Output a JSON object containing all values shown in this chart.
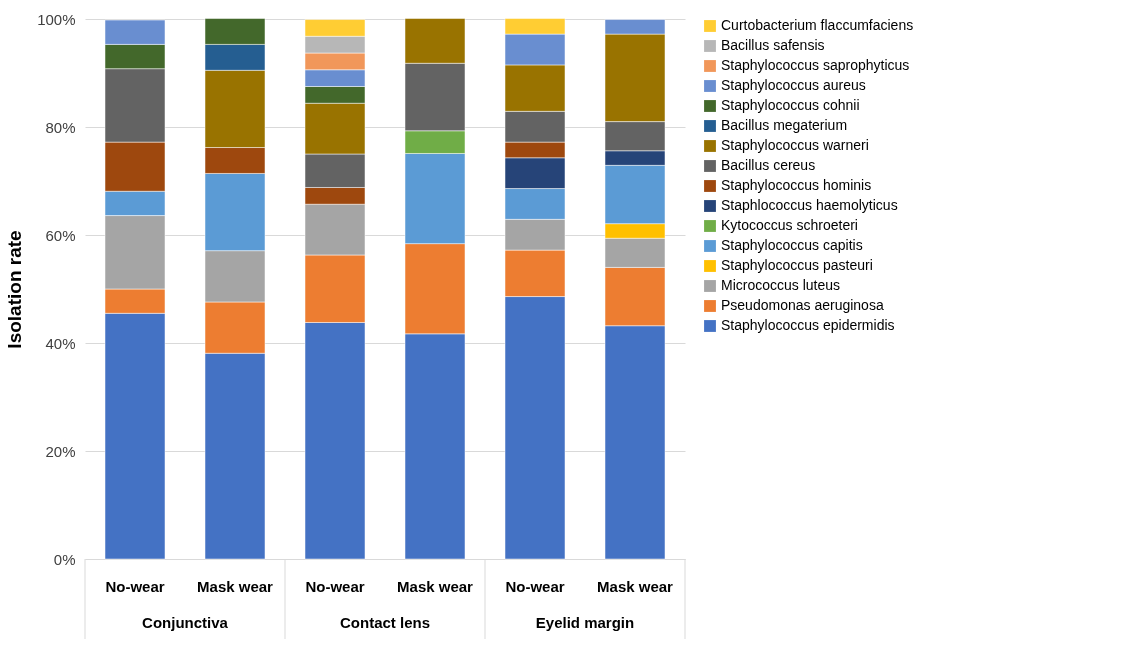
{
  "chart_data": {
    "type": "bar",
    "stacked": true,
    "ylabel": "Isolation rate",
    "categories": [
      "No-wear",
      "Mask wear",
      "No-wear",
      "Mask wear",
      "No-wear",
      "Mask wear"
    ],
    "annotations": [
      "Conjunctiva",
      "Contact lens",
      "Eyelid margin"
    ],
    "ylim": [
      0,
      100
    ],
    "yticks": [
      {
        "value": 0,
        "label": "0%"
      },
      {
        "value": 20,
        "label": "20%"
      },
      {
        "value": 40,
        "label": "40%"
      },
      {
        "value": 60,
        "label": "60%"
      },
      {
        "value": 80,
        "label": "80%"
      },
      {
        "value": 100,
        "label": "100%"
      }
    ],
    "grid": "y",
    "legend": "right",
    "series": [
      {
        "name": "Staphylococcus epidermidis",
        "color": "#4472c4",
        "values": [
          45.5,
          38.1,
          43.8,
          41.7,
          48.6,
          43.2
        ]
      },
      {
        "name": "Pseudomonas aeruginosa",
        "color": "#ed7d31",
        "values": [
          4.5,
          9.5,
          12.5,
          16.7,
          8.6,
          10.8
        ]
      },
      {
        "name": "Micrococcus luteus",
        "color": "#a5a5a5",
        "values": [
          13.6,
          9.5,
          9.4,
          null,
          5.7,
          5.4
        ]
      },
      {
        "name": "Staphylococcus pasteuri",
        "color": "#ffc000",
        "values": [
          null,
          null,
          null,
          null,
          null,
          2.7
        ]
      },
      {
        "name": "Staphylococcus capitis",
        "color": "#5b9bd5",
        "values": [
          4.5,
          14.3,
          null,
          16.7,
          5.7,
          10.8
        ]
      },
      {
        "name": "Kytococcus schroeteri",
        "color": "#70ad47",
        "values": [
          null,
          null,
          null,
          4.2,
          null,
          null
        ]
      },
      {
        "name": "Staphlococcus haemolyticus",
        "color": "#264478",
        "values": [
          null,
          null,
          null,
          null,
          5.7,
          2.7
        ]
      },
      {
        "name": "Staphylococcus hominis",
        "color": "#9e480e",
        "values": [
          9.1,
          4.8,
          3.1,
          null,
          2.9,
          null
        ]
      },
      {
        "name": "Bacillus cereus",
        "color": "#636363",
        "values": [
          13.6,
          null,
          6.2,
          12.5,
          5.7,
          5.4
        ]
      },
      {
        "name": "Staphylococcus warneri",
        "color": "#997300",
        "values": [
          null,
          14.3,
          9.4,
          8.3,
          8.6,
          16.2
        ]
      },
      {
        "name": "Bacillus megaterium",
        "color": "#255e91",
        "values": [
          null,
          4.8,
          null,
          null,
          null,
          null
        ]
      },
      {
        "name": "Staphylococcus cohnii",
        "color": "#43682b",
        "values": [
          4.5,
          4.8,
          3.1,
          null,
          null,
          null
        ]
      },
      {
        "name": "Staphylococcus aureus",
        "color": "#698ed0",
        "values": [
          4.5,
          null,
          3.1,
          null,
          5.7,
          2.7
        ]
      },
      {
        "name": "Staphylococcus saprophyticus",
        "color": "#f1975a",
        "values": [
          null,
          null,
          3.1,
          null,
          null,
          null
        ]
      },
      {
        "name": "Bacillus safensis",
        "color": "#b7b7b7",
        "values": [
          null,
          null,
          3.1,
          null,
          null,
          null
        ]
      },
      {
        "name": "Curtobacterium flaccumfaciens",
        "color": "#ffcd33",
        "values": [
          null,
          null,
          3.1,
          null,
          2.9,
          null
        ]
      }
    ]
  }
}
